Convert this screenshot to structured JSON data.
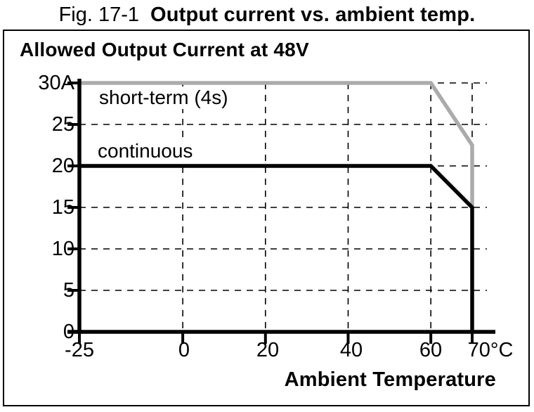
{
  "figure": {
    "caption_prefix": "Fig. 17-1",
    "caption_title": "Output current vs. ambient temp."
  },
  "panel": {
    "heading": "Allowed Output Current at 48V",
    "x_axis_title": "Ambient Temperature"
  },
  "colors": {
    "black": "#000000",
    "gray": "#ababab",
    "panel_border": "#000000",
    "background": "#ffffff"
  },
  "chart_data": {
    "type": "line",
    "title": "Allowed Output Current at 48V",
    "xlabel": "Ambient Temperature",
    "ylabel": "Output current",
    "x_unit": "°C",
    "y_unit": "A",
    "xlim": [
      -25,
      75
    ],
    "ylim": [
      0,
      30
    ],
    "grid": true,
    "legend_position": "inline-labels",
    "x_ticks": [
      -25,
      0,
      20,
      40,
      60,
      70
    ],
    "x_tick_labels": [
      "-25",
      "0",
      "20",
      "40",
      "60",
      "70°C"
    ],
    "y_ticks": [
      0,
      5,
      10,
      15,
      20,
      25,
      30
    ],
    "y_tick_labels": [
      "0",
      "5",
      "10",
      "15",
      "20",
      "25",
      "30A"
    ],
    "x_gridlines": [
      0,
      20,
      40,
      60,
      70
    ],
    "y_gridlines": [
      5,
      10,
      15,
      20,
      25,
      30
    ],
    "series": [
      {
        "name": "short-term (4s)",
        "color": "#ababab",
        "points": [
          [
            -25,
            30
          ],
          [
            60,
            30
          ],
          [
            70,
            22.5
          ],
          [
            70,
            15
          ]
        ]
      },
      {
        "name": "continuous",
        "color": "#000000",
        "points": [
          [
            -25,
            20
          ],
          [
            60,
            20
          ],
          [
            70,
            15
          ],
          [
            70,
            0
          ]
        ]
      }
    ],
    "series_labels": [
      {
        "text": "short-term (4s)"
      },
      {
        "text": "continuous"
      }
    ]
  }
}
